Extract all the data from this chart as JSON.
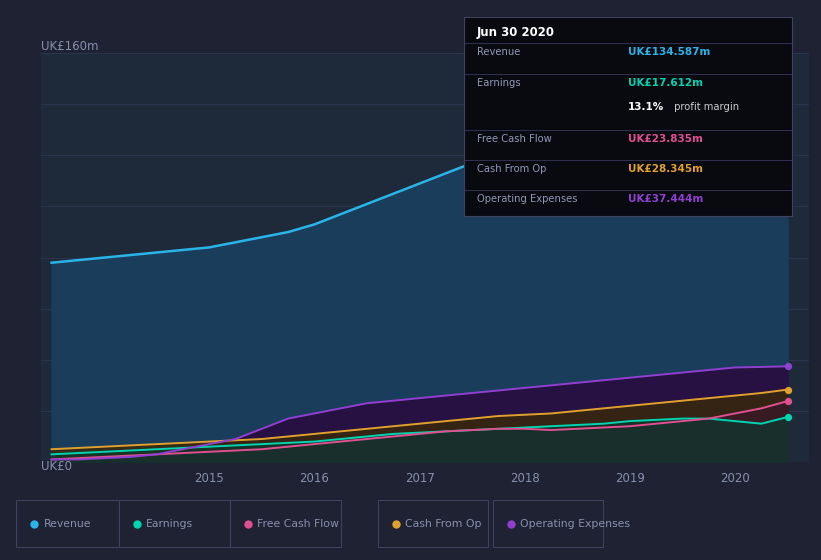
{
  "bg_color": "#1e2232",
  "plot_bg_color": "#1e2a3a",
  "grid_color": "#2a3550",
  "text_color": "#8890b0",
  "title_label": "UK£160m",
  "zero_label": "UK£0",
  "years": [
    2013.5,
    2013.75,
    2014.0,
    2014.25,
    2014.5,
    2014.75,
    2015.0,
    2015.25,
    2015.5,
    2015.75,
    2016.0,
    2016.25,
    2016.5,
    2016.75,
    2017.0,
    2017.25,
    2017.5,
    2017.75,
    2018.0,
    2018.25,
    2018.5,
    2018.75,
    2019.0,
    2019.25,
    2019.5,
    2019.75,
    2020.0,
    2020.25,
    2020.5
  ],
  "revenue": [
    78,
    79,
    80,
    81,
    82,
    83,
    84,
    86,
    88,
    90,
    93,
    97,
    101,
    105,
    109,
    113,
    117,
    119,
    121,
    126,
    129,
    131,
    141,
    149,
    153,
    155,
    156,
    146,
    134.587
  ],
  "earnings": [
    3,
    3.5,
    4,
    4.5,
    5,
    5.5,
    6,
    6.5,
    7,
    7.5,
    8,
    9,
    10,
    11,
    11.5,
    12,
    12.5,
    13,
    13.5,
    14,
    14.5,
    15,
    16,
    16.5,
    17,
    17,
    16,
    15,
    17.612
  ],
  "free_cash_flow": [
    1,
    1.5,
    2,
    2.5,
    3,
    3.5,
    4,
    4.5,
    5,
    6,
    7,
    8,
    9,
    10,
    11,
    12,
    12.5,
    13,
    13,
    12.5,
    13,
    13.5,
    14,
    15,
    16,
    17,
    19,
    21,
    23.835
  ],
  "cash_from_op": [
    5,
    5.5,
    6,
    6.5,
    7,
    7.5,
    8,
    8.5,
    9,
    10,
    11,
    12,
    13,
    14,
    15,
    16,
    17,
    18,
    18.5,
    19,
    20,
    21,
    22,
    23,
    24,
    25,
    26,
    27,
    28.345
  ],
  "op_expenses": [
    1,
    1,
    1.5,
    2,
    3,
    5,
    7,
    9,
    13,
    17,
    19,
    21,
    23,
    24,
    25,
    26,
    27,
    28,
    29,
    30,
    31,
    32,
    33,
    34,
    35,
    36,
    37,
    37.2,
    37.444
  ],
  "revenue_color": "#2ab4e8",
  "earnings_color": "#00d4b0",
  "fcf_color": "#e05090",
  "cfo_color": "#e0a030",
  "opex_color": "#9040d0",
  "revenue_fill_color": "#1a3d5c",
  "earnings_fill_color": "#0d3830",
  "fcf_fill_color": "#3a1828",
  "cfo_fill_color": "#3a2808",
  "opex_fill_color": "#280d40",
  "ylim_max": 160,
  "xlim_min": 2013.4,
  "xlim_max": 2020.7,
  "xticks": [
    2015,
    2016,
    2017,
    2018,
    2019,
    2020
  ],
  "info_box_title": "Jun 30 2020",
  "info_rows": [
    {
      "label": "Revenue",
      "value": "UK£134.587m",
      "value_color": "#2ab4e8"
    },
    {
      "label": "Earnings",
      "value": "UK£17.612m",
      "value_color": "#00d4b0"
    },
    {
      "label": "",
      "value": "13.1% profit margin",
      "value_color": "#cccccc",
      "bold_prefix": "13.1%"
    },
    {
      "label": "Free Cash Flow",
      "value": "UK£23.835m",
      "value_color": "#e05090"
    },
    {
      "label": "Cash From Op",
      "value": "UK£28.345m",
      "value_color": "#e0a030"
    },
    {
      "label": "Operating Expenses",
      "value": "UK£37.444m",
      "value_color": "#9040d0"
    }
  ],
  "legend_items": [
    {
      "label": "Revenue",
      "color": "#2ab4e8"
    },
    {
      "label": "Earnings",
      "color": "#00d4b0"
    },
    {
      "label": "Free Cash Flow",
      "color": "#e05090"
    },
    {
      "label": "Cash From Op",
      "color": "#e0a030"
    },
    {
      "label": "Operating Expenses",
      "color": "#9040d0"
    }
  ]
}
